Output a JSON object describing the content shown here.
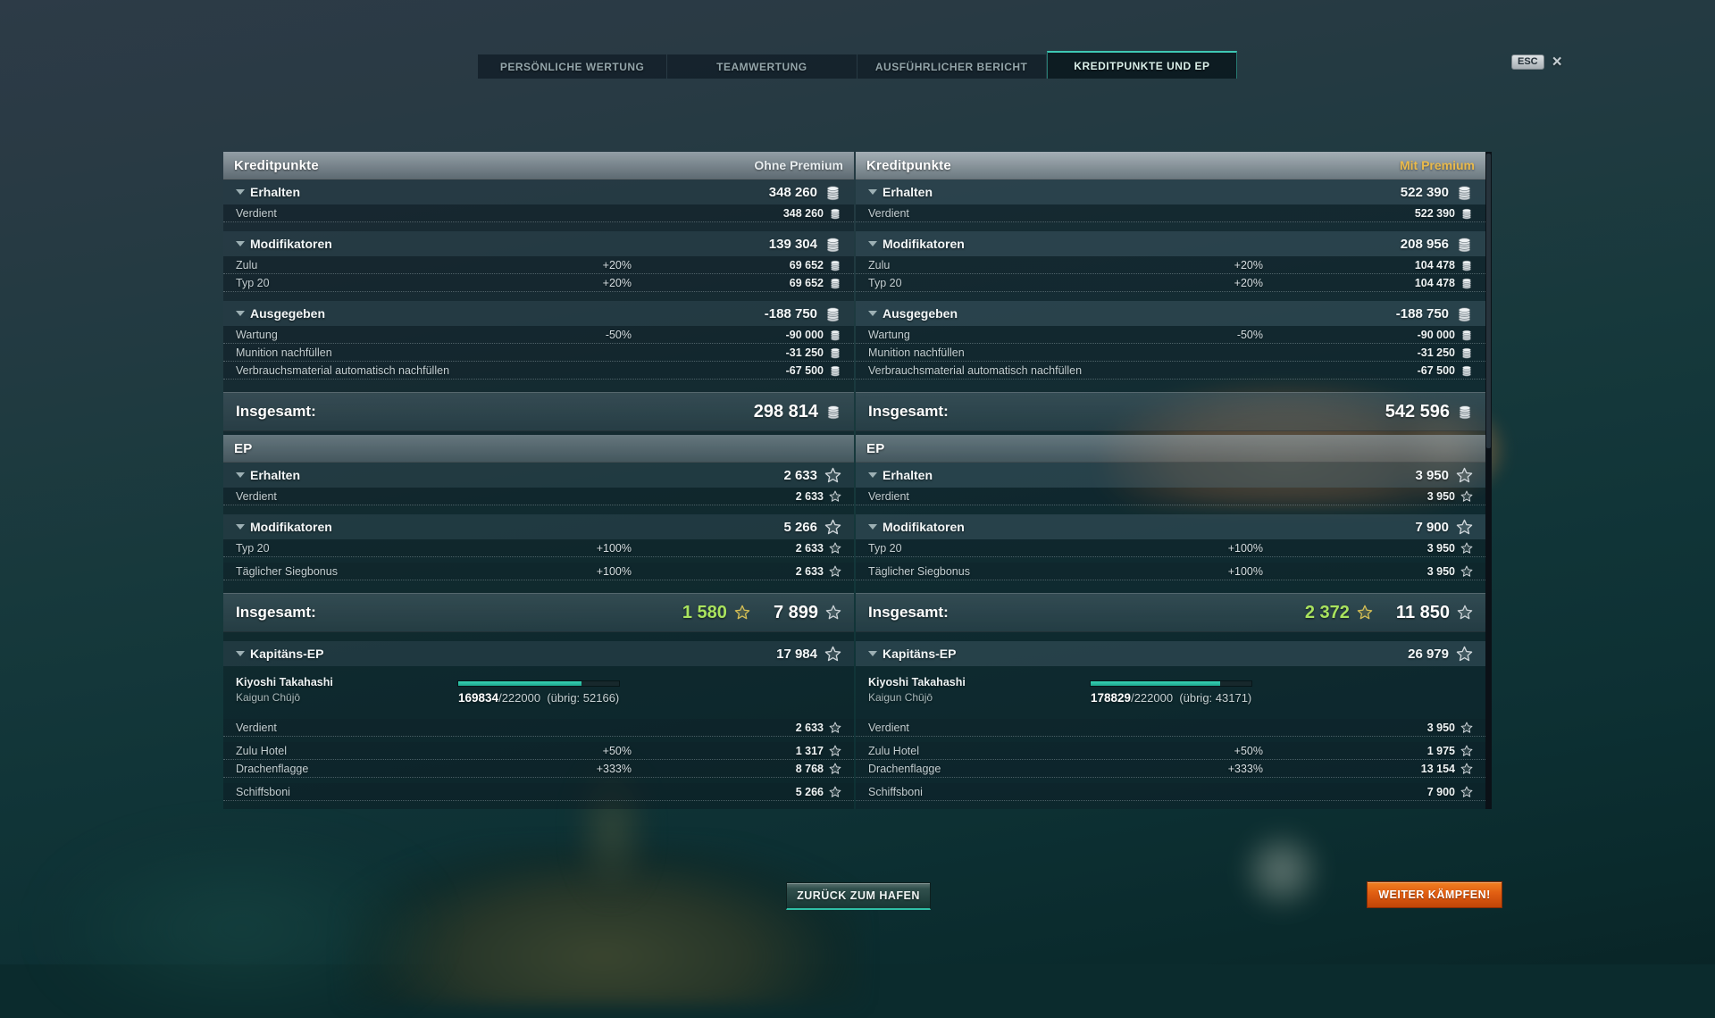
{
  "window": {
    "esc_key": "ESC",
    "close_icon": "×"
  },
  "tabs": [
    {
      "label": "PERSÖNLICHE WERTUNG",
      "active": false
    },
    {
      "label": "TEAMWERTUNG",
      "active": false
    },
    {
      "label": "AUSFÜHRLICHER BERICHT",
      "active": false
    },
    {
      "label": "KREDITPUNKTE UND EP",
      "active": true
    }
  ],
  "colors": {
    "accent_teal": "#3ec8b4",
    "premium_gold": "#eaba4b",
    "bonus_green": "#a9e35e",
    "fight_button_orange": "#e05d12"
  },
  "footer": {
    "back_to_port": "ZURÜCK ZUM HAFEN",
    "fight_on": "WEITER KÄMPFEN!"
  },
  "panels": [
    {
      "id": "ohne-premium",
      "premium": false,
      "rows": [
        {
          "t": "band",
          "label": "Kreditpunkte",
          "right": "Ohne Premium"
        },
        {
          "t": "section",
          "label": "Erhalten",
          "value": "348 260",
          "icon": "coins"
        },
        {
          "t": "sub",
          "label": "Verdient",
          "pct": "",
          "value": "348 260",
          "icon": "coins"
        },
        {
          "t": "section",
          "label": "Modifikatoren",
          "value": "139 304",
          "icon": "coins",
          "mt": true
        },
        {
          "t": "sub",
          "label": "Zulu",
          "pct": "+20%",
          "value": "69 652",
          "icon": "coins"
        },
        {
          "t": "sub",
          "label": "Typ 20",
          "pct": "+20%",
          "value": "69 652",
          "icon": "coins"
        },
        {
          "t": "section",
          "label": "Ausgegeben",
          "value": "-188 750",
          "icon": "coins",
          "mt": true
        },
        {
          "t": "sub",
          "label": "Wartung",
          "pct": "-50%",
          "value": "-90 000",
          "icon": "coins"
        },
        {
          "t": "sub",
          "label": "Munition nachfüllen",
          "pct": "",
          "value": "-31 250",
          "icon": "coins"
        },
        {
          "t": "sub",
          "label": "Verbrauchsmaterial automatisch nachfüllen",
          "pct": "",
          "value": "-67 500",
          "icon": "coins"
        },
        {
          "t": "total",
          "label": "Insgesamt:",
          "green": "",
          "value": "298 814",
          "icon": "coins"
        },
        {
          "t": "band",
          "label": "EP",
          "right": ""
        },
        {
          "t": "section",
          "label": "Erhalten",
          "value": "2 633",
          "icon": "star"
        },
        {
          "t": "sub",
          "label": "Verdient",
          "pct": "",
          "value": "2 633",
          "icon": "star"
        },
        {
          "t": "section",
          "label": "Modifikatoren",
          "value": "5 266",
          "icon": "star",
          "mt": true
        },
        {
          "t": "sub",
          "label": "Typ 20",
          "pct": "+100%",
          "value": "2 633",
          "icon": "star"
        },
        {
          "t": "sub",
          "label": "Täglicher Siegbonus",
          "pct": "+100%",
          "value": "2 633",
          "icon": "star",
          "mt": true
        },
        {
          "t": "total",
          "label": "Insgesamt:",
          "green": "1 580",
          "value": "7 899",
          "icon": "star"
        },
        {
          "t": "section",
          "label": "Kapitäns-EP",
          "value": "17 984",
          "icon": "star",
          "mt": true
        },
        {
          "t": "commander",
          "name": "Kiyoshi Takahashi",
          "rank": "Kaigun Chūjō",
          "current": "169834",
          "max": "222000",
          "rest": "(übrig: 52166)",
          "pct": 76.5
        },
        {
          "t": "sub",
          "label": "Verdient",
          "pct": "",
          "value": "2 633",
          "icon": "star"
        },
        {
          "t": "sub",
          "label": "Zulu Hotel",
          "pct": "+50%",
          "value": "1 317",
          "icon": "star",
          "mt": true
        },
        {
          "t": "sub",
          "label": "Drachenflagge",
          "pct": "+333%",
          "value": "8 768",
          "icon": "star"
        },
        {
          "t": "sub",
          "label": "Schiffsboni",
          "pct": "",
          "value": "5 266",
          "icon": "star",
          "mt": true
        }
      ]
    },
    {
      "id": "mit-premium",
      "premium": true,
      "rows": [
        {
          "t": "band",
          "label": "Kreditpunkte",
          "right": "Mit Premium"
        },
        {
          "t": "section",
          "label": "Erhalten",
          "value": "522 390",
          "icon": "coins"
        },
        {
          "t": "sub",
          "label": "Verdient",
          "pct": "",
          "value": "522 390",
          "icon": "coins"
        },
        {
          "t": "section",
          "label": "Modifikatoren",
          "value": "208 956",
          "icon": "coins",
          "mt": true
        },
        {
          "t": "sub",
          "label": "Zulu",
          "pct": "+20%",
          "value": "104 478",
          "icon": "coins"
        },
        {
          "t": "sub",
          "label": "Typ 20",
          "pct": "+20%",
          "value": "104 478",
          "icon": "coins"
        },
        {
          "t": "section",
          "label": "Ausgegeben",
          "value": "-188 750",
          "icon": "coins",
          "mt": true
        },
        {
          "t": "sub",
          "label": "Wartung",
          "pct": "-50%",
          "value": "-90 000",
          "icon": "coins"
        },
        {
          "t": "sub",
          "label": "Munition nachfüllen",
          "pct": "",
          "value": "-31 250",
          "icon": "coins"
        },
        {
          "t": "sub",
          "label": "Verbrauchsmaterial automatisch nachfüllen",
          "pct": "",
          "value": "-67 500",
          "icon": "coins"
        },
        {
          "t": "total",
          "label": "Insgesamt:",
          "green": "",
          "value": "542 596",
          "icon": "coins"
        },
        {
          "t": "band",
          "label": "EP",
          "right": ""
        },
        {
          "t": "section",
          "label": "Erhalten",
          "value": "3 950",
          "icon": "star"
        },
        {
          "t": "sub",
          "label": "Verdient",
          "pct": "",
          "value": "3 950",
          "icon": "star"
        },
        {
          "t": "section",
          "label": "Modifikatoren",
          "value": "7 900",
          "icon": "star",
          "mt": true
        },
        {
          "t": "sub",
          "label": "Typ 20",
          "pct": "+100%",
          "value": "3 950",
          "icon": "star"
        },
        {
          "t": "sub",
          "label": "Täglicher Siegbonus",
          "pct": "+100%",
          "value": "3 950",
          "icon": "star",
          "mt": true
        },
        {
          "t": "total",
          "label": "Insgesamt:",
          "green": "2 372",
          "value": "11 850",
          "icon": "star"
        },
        {
          "t": "section",
          "label": "Kapitäns-EP",
          "value": "26 979",
          "icon": "star",
          "mt": true
        },
        {
          "t": "commander",
          "name": "Kiyoshi Takahashi",
          "rank": "Kaigun Chūjō",
          "current": "178829",
          "max": "222000",
          "rest": "(übrig: 43171)",
          "pct": 80.6
        },
        {
          "t": "sub",
          "label": "Verdient",
          "pct": "",
          "value": "3 950",
          "icon": "star"
        },
        {
          "t": "sub",
          "label": "Zulu Hotel",
          "pct": "+50%",
          "value": "1 975",
          "icon": "star",
          "mt": true
        },
        {
          "t": "sub",
          "label": "Drachenflagge",
          "pct": "+333%",
          "value": "13 154",
          "icon": "star"
        },
        {
          "t": "sub",
          "label": "Schiffsboni",
          "pct": "",
          "value": "7 900",
          "icon": "star",
          "mt": true
        }
      ]
    }
  ]
}
